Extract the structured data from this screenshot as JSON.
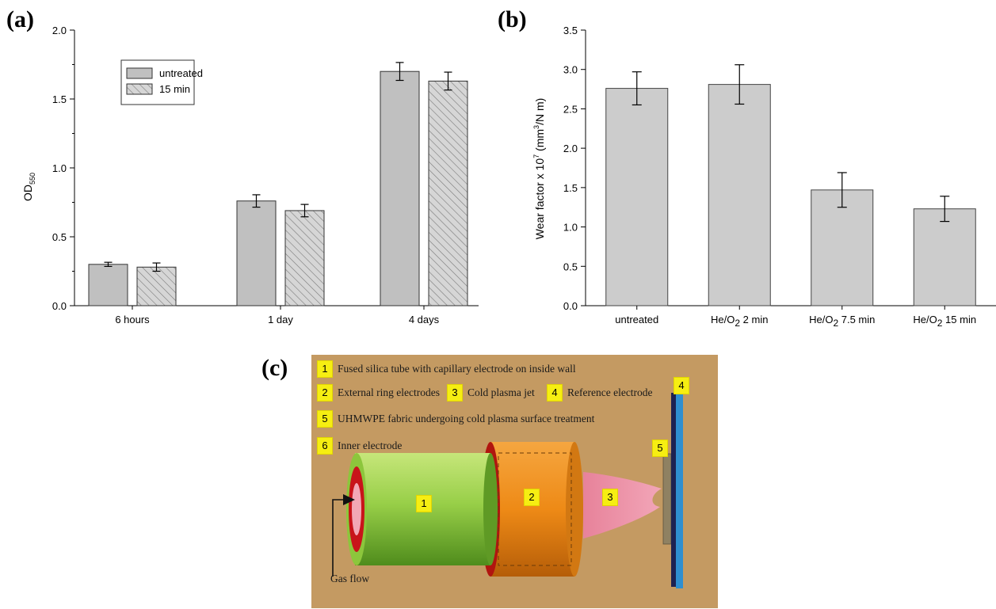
{
  "panel_labels": {
    "a": "(a)",
    "b": "(b)",
    "c": "(c)"
  },
  "chart_data": [
    {
      "type": "bar",
      "categories": [
        "6 hours",
        "1 day",
        "4 days"
      ],
      "series": [
        {
          "name": "untreated",
          "values": [
            0.3,
            0.76,
            1.7
          ],
          "errors": [
            0.015,
            0.045,
            0.065
          ],
          "color": "#c0c0c0",
          "pattern": "solid"
        },
        {
          "name": "15 min",
          "values": [
            0.28,
            0.69,
            1.63
          ],
          "errors": [
            0.03,
            0.045,
            0.065
          ],
          "color": "#cfcfcf",
          "pattern": "hatched"
        }
      ],
      "ylabel": "OD",
      "ylabel_sub": "550",
      "ylim": [
        0,
        2.0
      ],
      "yticks": [
        "0.0",
        "0.5",
        "1.0",
        "1.5",
        "2.0"
      ],
      "legend": "top-left"
    },
    {
      "type": "bar",
      "categories": [
        "untreated",
        "He/O2 2 min",
        "He/O2 7.5 min",
        "He/O2 15 min"
      ],
      "category_parts": [
        {
          "pre": "untreated",
          "sub": "",
          "post": ""
        },
        {
          "pre": "He/O",
          "sub": "2",
          "post": " 2 min"
        },
        {
          "pre": "He/O",
          "sub": "2",
          "post": " 7.5 min"
        },
        {
          "pre": "He/O",
          "sub": "2",
          "post": " 15 min"
        }
      ],
      "values": [
        2.76,
        2.81,
        1.47,
        1.23
      ],
      "errors": [
        0.21,
        0.25,
        0.22,
        0.16
      ],
      "color": "#cccccc",
      "ylabel_pre": "Wear factor x 10",
      "ylabel_exp": "7",
      "ylabel_mid": " (mm",
      "ylabel_exp2": "3",
      "ylabel_post": "/N m)",
      "ylim": [
        0,
        3.5
      ],
      "yticks": [
        "0.0",
        "0.5",
        "1.0",
        "1.5",
        "2.0",
        "2.5",
        "3.0",
        "3.5"
      ]
    }
  ],
  "diagram": {
    "legend": [
      {
        "n": "1",
        "text": "Fused silica tube with capillary electrode on inside wall"
      },
      {
        "n": "2",
        "text": "External ring electrodes"
      },
      {
        "n": "3",
        "text": "Cold plasma jet"
      },
      {
        "n": "4",
        "text": "Reference electrode"
      },
      {
        "n": "5",
        "text": "UHMWPE fabric undergoing cold plasma surface treatment"
      },
      {
        "n": "6",
        "text": "Inner electrode"
      }
    ],
    "gas_flow_label": "Gas flow",
    "markers": [
      "1",
      "2",
      "3",
      "4",
      "5"
    ]
  }
}
